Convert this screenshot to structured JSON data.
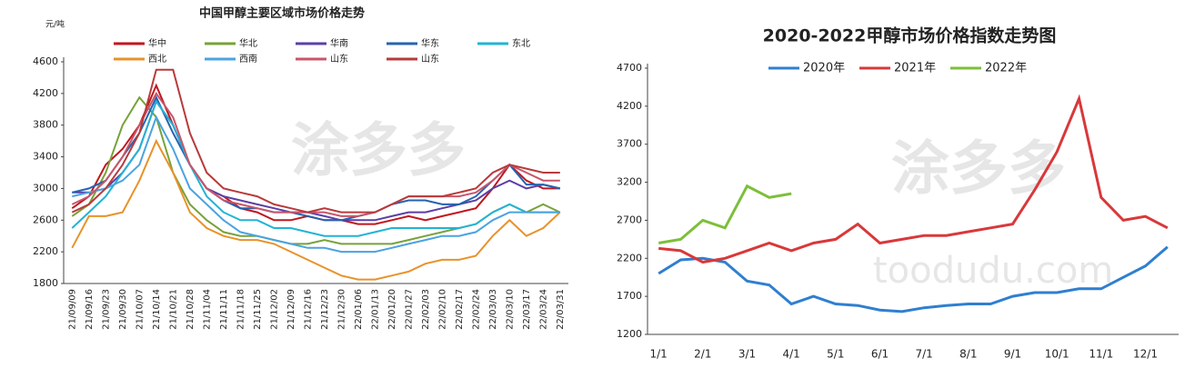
{
  "chart_data": [
    {
      "type": "line",
      "title": "中国甲醇主要区域市场价格走势",
      "y_label": "元/吨",
      "categories": [
        "21/09/09",
        "21/09/16",
        "21/09/23",
        "21/09/30",
        "21/10/07",
        "21/10/14",
        "21/10/21",
        "21/10/28",
        "21/11/04",
        "21/11/11",
        "21/11/18",
        "21/11/25",
        "21/12/02",
        "21/12/09",
        "21/12/16",
        "21/12/23",
        "21/12/30",
        "22/01/06",
        "22/01/13",
        "22/01/20",
        "22/01/27",
        "22/02/03",
        "22/02/10",
        "22/02/17",
        "22/02/24",
        "22/03/03",
        "22/03/10",
        "22/03/17",
        "22/03/24",
        "22/03/31"
      ],
      "series": [
        {
          "name": "华中",
          "color": "#c0161d",
          "values": [
            2750,
            2900,
            3300,
            3500,
            3800,
            4300,
            3800,
            3300,
            3000,
            2900,
            2750,
            2700,
            2600,
            2600,
            2650,
            2600,
            2600,
            2550,
            2550,
            2600,
            2650,
            2600,
            2650,
            2700,
            2750,
            3000,
            3300,
            3100,
            3000,
            3000
          ]
        },
        {
          "name": "华北",
          "color": "#77a23a",
          "values": [
            2650,
            2800,
            3200,
            3800,
            4150,
            3900,
            3200,
            2800,
            2600,
            2450,
            2400,
            2400,
            2350,
            2300,
            2300,
            2350,
            2300,
            2300,
            2300,
            2300,
            2350,
            2400,
            2450,
            2500,
            2550,
            2700,
            2800,
            2700,
            2800,
            2700
          ]
        },
        {
          "name": "华南",
          "color": "#5b3fa8",
          "values": [
            2950,
            2950,
            3000,
            3200,
            3500,
            4100,
            3800,
            3300,
            3000,
            2900,
            2850,
            2800,
            2750,
            2700,
            2700,
            2650,
            2600,
            2600,
            2600,
            2650,
            2700,
            2700,
            2750,
            2800,
            2850,
            3000,
            3100,
            3000,
            3050,
            3000
          ]
        },
        {
          "name": "华东",
          "color": "#2563b0",
          "values": [
            2950,
            3000,
            3100,
            3400,
            3700,
            4150,
            3700,
            3300,
            3000,
            2850,
            2750,
            2750,
            2700,
            2700,
            2650,
            2600,
            2600,
            2650,
            2700,
            2800,
            2850,
            2850,
            2800,
            2800,
            2900,
            3100,
            3300,
            3050,
            3050,
            3000
          ]
        },
        {
          "name": "东北",
          "color": "#22b3d6",
          "values": [
            2500,
            2700,
            2900,
            3200,
            3500,
            4100,
            3800,
            3300,
            2900,
            2700,
            2600,
            2600,
            2500,
            2500,
            2450,
            2400,
            2400,
            2400,
            2450,
            2500,
            2500,
            2500,
            2500,
            2500,
            2550,
            2700,
            2800,
            2700,
            2700,
            2700
          ]
        },
        {
          "name": "西北",
          "color": "#e8922a",
          "values": [
            2250,
            2650,
            2650,
            2700,
            3100,
            3600,
            3200,
            2700,
            2500,
            2400,
            2350,
            2350,
            2300,
            2200,
            2100,
            2000,
            1900,
            1850,
            1850,
            1900,
            1950,
            2050,
            2100,
            2100,
            2150,
            2400,
            2600,
            2400,
            2500,
            2700
          ]
        },
        {
          "name": "西南",
          "color": "#4aa3e0",
          "values": [
            2900,
            2950,
            3000,
            3100,
            3300,
            3900,
            3500,
            3000,
            2800,
            2600,
            2450,
            2400,
            2350,
            2300,
            2250,
            2250,
            2200,
            2200,
            2200,
            2250,
            2300,
            2350,
            2400,
            2400,
            2450,
            2600,
            2700,
            2700,
            2700,
            2700
          ]
        },
        {
          "name": "山东",
          "color": "#c9556a",
          "values": [
            2800,
            2900,
            3100,
            3400,
            3800,
            4200,
            3900,
            3300,
            3000,
            2850,
            2800,
            2750,
            2700,
            2700,
            2700,
            2700,
            2650,
            2650,
            2700,
            2800,
            2900,
            2900,
            2900,
            2900,
            2950,
            3100,
            3300,
            3200,
            3100,
            3100
          ]
        },
        {
          "name": "山东",
          "color": "#b83a3a",
          "values": [
            2700,
            2800,
            3000,
            3300,
            3700,
            4500,
            4500,
            3700,
            3200,
            3000,
            2950,
            2900,
            2800,
            2750,
            2700,
            2750,
            2700,
            2700,
            2700,
            2800,
            2900,
            2900,
            2900,
            2950,
            3000,
            3200,
            3300,
            3250,
            3200,
            3200
          ]
        }
      ],
      "ylim": [
        1800,
        4600
      ],
      "yticks": [
        1800,
        2200,
        2600,
        3000,
        3400,
        3800,
        4200,
        4600
      ],
      "legend": "top",
      "grid": false
    },
    {
      "type": "line",
      "title": "2020-2022甲醇市场价格指数走势图",
      "categories": [
        "1/1",
        null,
        "2/1",
        null,
        "3/1",
        null,
        "4/1",
        null,
        "5/1",
        null,
        "6/1",
        null,
        "7/1",
        null,
        "8/1",
        null,
        "9/1",
        null,
        "10/1",
        null,
        "11/1",
        null,
        "12/1",
        null
      ],
      "series": [
        {
          "name": "2020年",
          "color": "#2f7fd0",
          "values": [
            2000,
            2180,
            2200,
            2150,
            1900,
            1850,
            1600,
            1700,
            1600,
            1580,
            1520,
            1500,
            1550,
            1580,
            1600,
            1600,
            1700,
            1750,
            1750,
            1800,
            1800,
            1950,
            2100,
            2350
          ]
        },
        {
          "name": "2021年",
          "color": "#d9383a",
          "values": [
            2330,
            2300,
            2150,
            2200,
            2300,
            2400,
            2300,
            2400,
            2450,
            2650,
            2400,
            2450,
            2500,
            2500,
            2550,
            2600,
            2650,
            3100,
            3600,
            4300,
            3000,
            2700,
            2750,
            2600
          ]
        },
        {
          "name": "2022年",
          "color": "#7cbf3a",
          "values": [
            2400,
            2450,
            2700,
            2600,
            3150,
            3000,
            3050,
            null,
            null,
            null,
            null,
            null,
            null,
            null,
            null,
            null,
            null,
            null,
            null,
            null,
            null,
            null,
            null,
            null
          ]
        }
      ],
      "ylim": [
        1200,
        4700
      ],
      "yticks": [
        1200,
        1700,
        2200,
        2700,
        3200,
        3700,
        4200,
        4700
      ],
      "legend": "top",
      "grid": false
    }
  ],
  "watermark": {
    "brand": "涂多多",
    "site": "toodudu.com"
  }
}
